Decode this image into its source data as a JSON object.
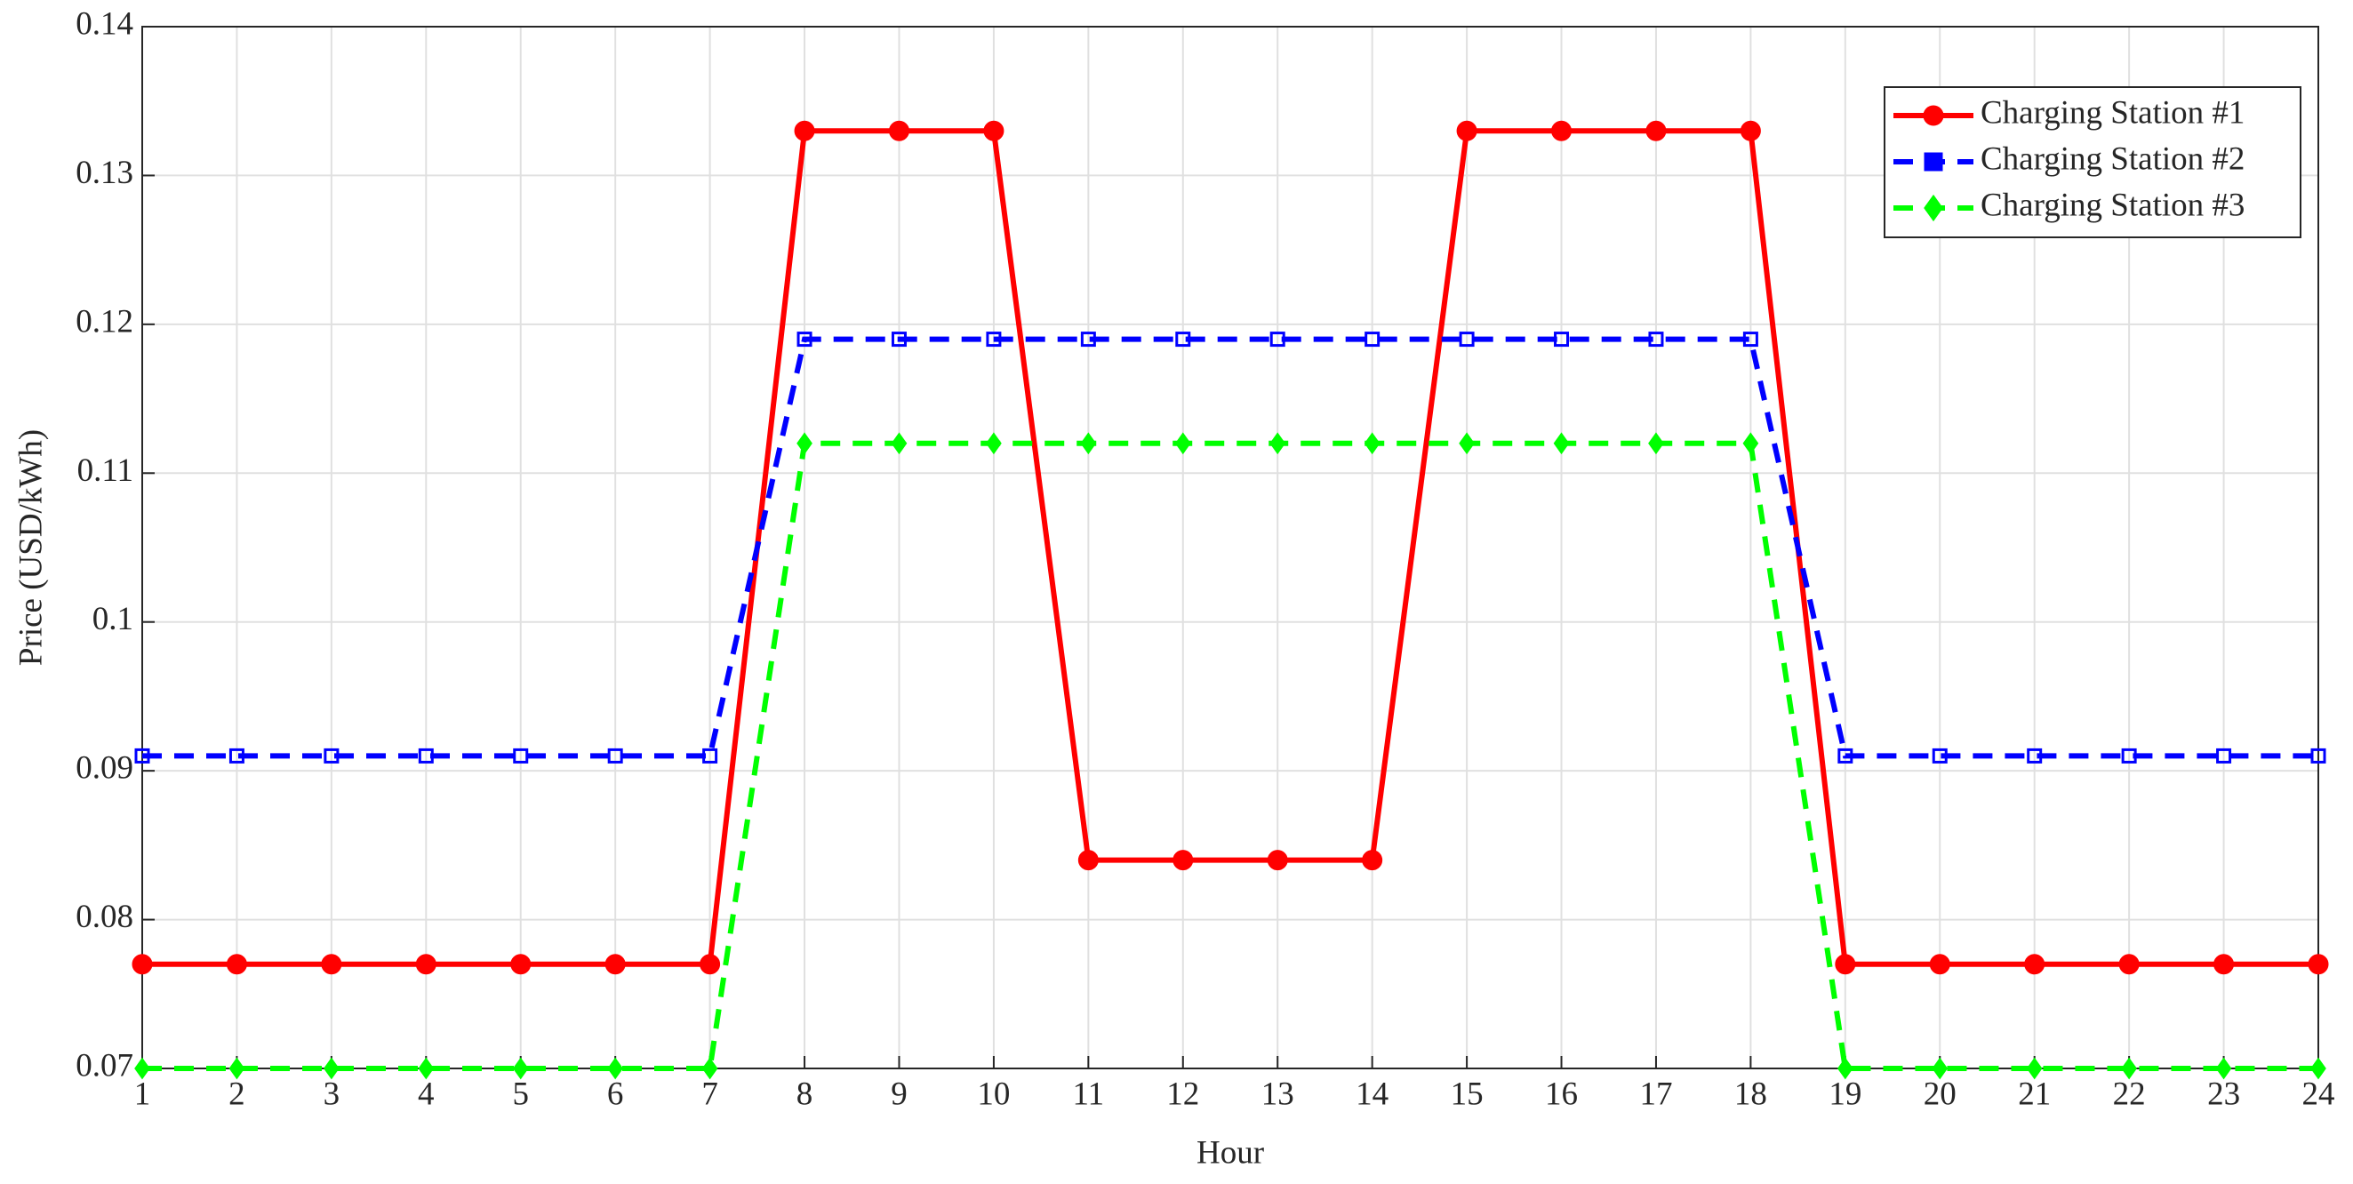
{
  "chart_data": {
    "type": "line",
    "xlabel": "Hour",
    "ylabel": "Price (USD/kWh)",
    "x": [
      1,
      2,
      3,
      4,
      5,
      6,
      7,
      8,
      9,
      10,
      11,
      12,
      13,
      14,
      15,
      16,
      17,
      18,
      19,
      20,
      21,
      22,
      23,
      24
    ],
    "series": [
      {
        "name": "Charging Station #1",
        "color": "#ff0000",
        "line_style": "solid",
        "marker": "circle",
        "values": [
          0.077,
          0.077,
          0.077,
          0.077,
          0.077,
          0.077,
          0.077,
          0.133,
          0.133,
          0.133,
          0.084,
          0.084,
          0.084,
          0.084,
          0.133,
          0.133,
          0.133,
          0.133,
          0.077,
          0.077,
          0.077,
          0.077,
          0.077,
          0.077
        ]
      },
      {
        "name": "Charging Station #2",
        "color": "#0000ff",
        "line_style": "dashed",
        "marker": "square",
        "values": [
          0.091,
          0.091,
          0.091,
          0.091,
          0.091,
          0.091,
          0.091,
          0.119,
          0.119,
          0.119,
          0.119,
          0.119,
          0.119,
          0.119,
          0.119,
          0.119,
          0.119,
          0.119,
          0.091,
          0.091,
          0.091,
          0.091,
          0.091,
          0.091
        ]
      },
      {
        "name": "Charging Station #3",
        "color": "#00ff00",
        "line_style": "dashed",
        "marker": "diamond",
        "values": [
          0.07,
          0.07,
          0.07,
          0.07,
          0.07,
          0.07,
          0.07,
          0.112,
          0.112,
          0.112,
          0.112,
          0.112,
          0.112,
          0.112,
          0.112,
          0.112,
          0.112,
          0.112,
          0.07,
          0.07,
          0.07,
          0.07,
          0.07,
          0.07
        ]
      }
    ],
    "xlim": [
      1,
      24
    ],
    "xticks": [
      1,
      2,
      3,
      4,
      5,
      6,
      7,
      8,
      9,
      10,
      11,
      12,
      13,
      14,
      15,
      16,
      17,
      18,
      19,
      20,
      21,
      22,
      23,
      24
    ],
    "ylim": [
      0.07,
      0.14
    ],
    "yticks": [
      0.07,
      0.08,
      0.09,
      0.1,
      0.11,
      0.12,
      0.13,
      0.14
    ],
    "grid": true,
    "legend": "upper right"
  }
}
